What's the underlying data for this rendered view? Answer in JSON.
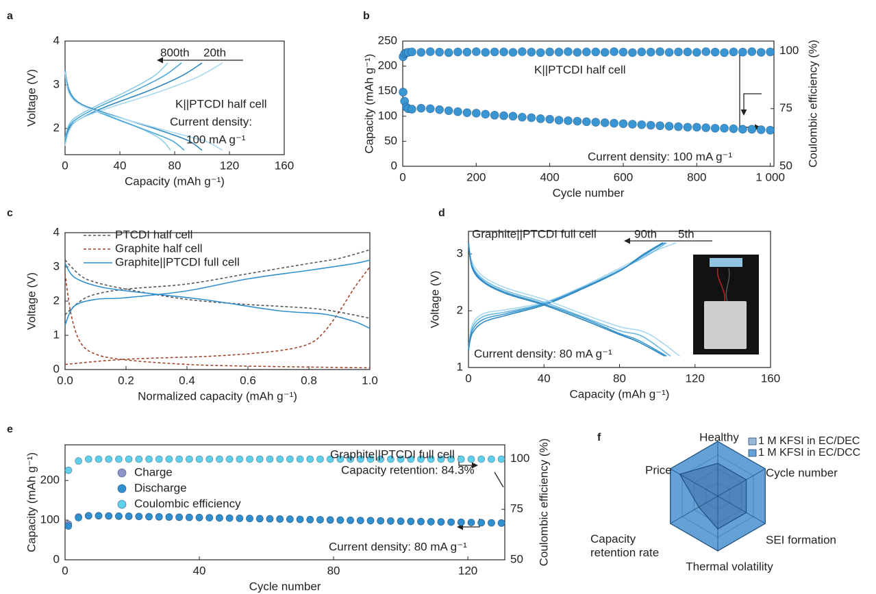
{
  "chart_data": [
    {
      "type": "line",
      "panel": "a",
      "xlabel": "Capacity (mAh g⁻¹)",
      "ylabel": "Voltage (V)",
      "xlim": [
        0,
        160
      ],
      "xticks": [
        0,
        40,
        80,
        120,
        160
      ],
      "ylim": [
        1.4,
        4
      ],
      "yticks": [
        2,
        3,
        4
      ],
      "annotations": [
        "800th",
        "20th",
        "K||PTCDI half cell",
        "Current density:",
        "100 mA g⁻¹"
      ],
      "series": [
        {
          "color": "#8ccbe9",
          "x": [
            0,
            3,
            10,
            25,
            45,
            65,
            75
          ],
          "values": [
            1.75,
            2.1,
            2.3,
            2.55,
            2.85,
            3.2,
            3.5
          ]
        },
        {
          "color": "#4aa6d8",
          "x": [
            0,
            3,
            10,
            25,
            50,
            72,
            85
          ],
          "values": [
            1.7,
            2.05,
            2.25,
            2.5,
            2.85,
            3.2,
            3.5
          ]
        },
        {
          "color": "#2b86c0",
          "x": [
            0,
            3,
            10,
            30,
            60,
            85,
            100
          ],
          "values": [
            1.65,
            2.0,
            2.2,
            2.5,
            2.85,
            3.2,
            3.5
          ]
        },
        {
          "color": "#a7d8ef",
          "x": [
            0,
            3,
            10,
            30,
            65,
            95,
            115
          ],
          "values": [
            1.6,
            1.95,
            2.2,
            2.45,
            2.8,
            3.15,
            3.5
          ]
        },
        {
          "color": "#8ccbe9",
          "x": [
            0,
            3,
            10,
            30,
            55,
            70,
            77
          ],
          "values": [
            3.3,
            2.9,
            2.6,
            2.3,
            2.0,
            1.75,
            1.5
          ]
        },
        {
          "color": "#4aa6d8",
          "x": [
            0,
            3,
            12,
            35,
            60,
            78,
            87
          ],
          "values": [
            3.3,
            2.85,
            2.55,
            2.25,
            1.95,
            1.72,
            1.5
          ]
        },
        {
          "color": "#2b86c0",
          "x": [
            0,
            3,
            12,
            40,
            70,
            90,
            100
          ],
          "values": [
            3.35,
            2.85,
            2.55,
            2.25,
            1.95,
            1.72,
            1.5
          ]
        },
        {
          "color": "#a7d8ef",
          "x": [
            0,
            3,
            14,
            45,
            80,
            103,
            115
          ],
          "values": [
            3.3,
            2.8,
            2.5,
            2.2,
            1.9,
            1.7,
            1.5
          ]
        }
      ]
    },
    {
      "type": "scatter",
      "panel": "b",
      "xlabel": "Cycle number",
      "ylabel": "Capacity (mAh g⁻¹)",
      "y2label": "Coulombic efficiency (%)",
      "xlim": [
        0,
        1010
      ],
      "xticks": [
        0,
        200,
        400,
        600,
        800,
        {
          "value": 1000,
          "label": "1 000"
        }
      ],
      "ylim": [
        0,
        250
      ],
      "yticks": [
        0,
        50,
        100,
        150,
        200,
        250
      ],
      "y2lim": [
        50,
        104.3
      ],
      "y2ticks": [
        50,
        75,
        100
      ],
      "annotations": [
        "K||PTCDI half cell",
        "Current density: 100 mA g⁻¹"
      ],
      "x": [
        1,
        5,
        10,
        15,
        25,
        50,
        75,
        100,
        125,
        150,
        175,
        200,
        225,
        250,
        275,
        300,
        325,
        350,
        375,
        400,
        425,
        450,
        475,
        500,
        525,
        550,
        575,
        600,
        625,
        650,
        675,
        700,
        725,
        750,
        775,
        800,
        825,
        850,
        875,
        900,
        925,
        950,
        975,
        1000
      ],
      "series": [
        {
          "color": "#3a96d2",
          "values": [
            148,
            130,
            118,
            115,
            114,
            116,
            115,
            113,
            111,
            109,
            107,
            106,
            104,
            102,
            101,
            100,
            98,
            97,
            95,
            94,
            92,
            91,
            90,
            89,
            88,
            87,
            86,
            85,
            84,
            83,
            82,
            81,
            80,
            79,
            78,
            78,
            77,
            76,
            76,
            75,
            74,
            74,
            73,
            72
          ]
        },
        {
          "color": "#3a96d2",
          "axis": "y2",
          "values": [
            97.5,
            98.8,
            99.2,
            99.4,
            99.6,
            99.4,
            99.7,
            99.5,
            99.3,
            99.6,
            99.5,
            99.7,
            99.4,
            99.6,
            99.6,
            99.4,
            99.7,
            99.5,
            99.3,
            99.6,
            99.5,
            99.7,
            99.4,
            99.6,
            99.6,
            99.4,
            99.7,
            99.5,
            99.3,
            99.6,
            99.5,
            99.7,
            99.4,
            99.6,
            99.6,
            99.4,
            99.7,
            99.5,
            99.3,
            99.6,
            99.5,
            99.7,
            99.4,
            99.6
          ]
        }
      ]
    },
    {
      "type": "line",
      "panel": "c",
      "xlabel": "Normalized capacity (mAh g⁻¹)",
      "ylabel": "Voltage (V)",
      "xlim": [
        0,
        1
      ],
      "xticks": [
        {
          "value": 0,
          "label": "0.0"
        },
        0.2,
        0.4,
        0.6,
        0.8,
        {
          "value": 1,
          "label": "1.0"
        }
      ],
      "ylim": [
        0,
        4
      ],
      "yticks": [
        0,
        1,
        2,
        3,
        4
      ],
      "legend": "upper left",
      "series": [
        {
          "name": "PTCDI half cell",
          "color": "#555555",
          "linestyle": "dashed",
          "x": [
            0,
            0.05,
            0.1,
            0.2,
            0.4,
            0.6,
            0.8,
            0.9,
            1.0,
            null,
            0,
            0.05,
            0.1,
            0.2,
            0.4,
            0.6,
            0.7,
            0.85,
            1.0
          ],
          "values": [
            1.6,
            2.0,
            2.2,
            2.35,
            2.5,
            2.8,
            3.1,
            3.25,
            3.5,
            null,
            3.2,
            2.75,
            2.55,
            2.35,
            2.05,
            1.9,
            1.85,
            1.75,
            1.5
          ]
        },
        {
          "name": "Graphite half cell",
          "color": "#a0452a",
          "linestyle": "dashed",
          "x": [
            0,
            0.02,
            0.05,
            0.1,
            0.2,
            0.4,
            0.6,
            1.0,
            null,
            0,
            0.2,
            0.5,
            0.7,
            0.8,
            0.85,
            0.9,
            0.95,
            1.0
          ],
          "values": [
            2.8,
            1.6,
            0.8,
            0.45,
            0.28,
            0.15,
            0.1,
            0.05,
            null,
            0.15,
            0.3,
            0.4,
            0.55,
            0.75,
            1.1,
            1.7,
            2.4,
            3.0
          ]
        },
        {
          "name": "Graphite||PTCDI full cell",
          "color": "#2f8fcf",
          "linestyle": "solid",
          "x": [
            0,
            0.03,
            0.1,
            0.2,
            0.4,
            0.6,
            0.8,
            0.95,
            1.0,
            null,
            0,
            0.03,
            0.1,
            0.2,
            0.45,
            0.7,
            0.85,
            0.95,
            1.0
          ],
          "values": [
            1.3,
            1.85,
            2.05,
            2.1,
            2.3,
            2.65,
            2.9,
            3.1,
            3.2,
            null,
            3.1,
            2.7,
            2.45,
            2.3,
            2.05,
            1.72,
            1.62,
            1.4,
            1.2
          ]
        }
      ]
    },
    {
      "type": "line",
      "panel": "d",
      "xlabel": "Capacity (mAh g⁻¹)",
      "ylabel": "Voltage (V)",
      "xlim": [
        0,
        160
      ],
      "xticks": [
        0,
        40,
        80,
        120,
        160
      ],
      "ylim": [
        1,
        3.4
      ],
      "yticks": [
        1,
        2,
        3
      ],
      "annotations": [
        "Graphite||PTCDI full cell",
        "90th",
        "5th",
        "Current density: 80 mA g⁻¹"
      ],
      "series": [
        {
          "color": "#a7d8ef",
          "x": [
            0,
            2,
            8,
            20,
            40,
            60,
            80,
            95,
            110
          ],
          "values": [
            1.3,
            1.75,
            1.95,
            2.02,
            2.15,
            2.42,
            2.75,
            3.0,
            3.2
          ]
        },
        {
          "color": "#6bb8e2",
          "x": [
            0,
            2,
            8,
            20,
            40,
            60,
            80,
            95,
            105
          ],
          "values": [
            1.3,
            1.7,
            1.9,
            1.98,
            2.13,
            2.4,
            2.72,
            2.98,
            3.2
          ]
        },
        {
          "color": "#3d98cf",
          "x": [
            0,
            2,
            8,
            20,
            40,
            60,
            80,
            93,
            104
          ],
          "values": [
            1.3,
            1.65,
            1.85,
            1.95,
            2.12,
            2.4,
            2.7,
            2.98,
            3.2
          ]
        },
        {
          "color": "#2b86c0",
          "x": [
            0,
            2,
            8,
            20,
            40,
            60,
            80,
            92,
            103
          ],
          "values": [
            1.3,
            1.6,
            1.8,
            1.92,
            2.1,
            2.38,
            2.7,
            2.98,
            3.2
          ]
        },
        {
          "color": "#a7d8ef",
          "x": [
            0,
            2,
            8,
            20,
            40,
            60,
            80,
            95,
            112
          ],
          "values": [
            3.2,
            2.85,
            2.6,
            2.4,
            2.2,
            1.95,
            1.72,
            1.6,
            1.2
          ]
        },
        {
          "color": "#6bb8e2",
          "x": [
            0,
            2,
            8,
            20,
            40,
            60,
            80,
            92,
            107
          ],
          "values": [
            3.2,
            2.8,
            2.55,
            2.35,
            2.15,
            1.9,
            1.65,
            1.55,
            1.2
          ]
        },
        {
          "color": "#3d98cf",
          "x": [
            0,
            2,
            8,
            20,
            40,
            60,
            80,
            90,
            105
          ],
          "values": [
            3.2,
            2.78,
            2.52,
            2.32,
            2.12,
            1.88,
            1.6,
            1.48,
            1.2
          ]
        },
        {
          "color": "#2b86c0",
          "x": [
            0,
            2,
            8,
            20,
            40,
            60,
            80,
            90,
            104
          ],
          "values": [
            3.2,
            2.75,
            2.5,
            2.3,
            2.1,
            1.85,
            1.58,
            1.45,
            1.2
          ]
        }
      ]
    },
    {
      "type": "scatter",
      "panel": "e",
      "xlabel": "Cycle number",
      "ylabel": "Capacity (mAh g⁻¹)",
      "y2label": "Coulombic efficiency (%)",
      "xlim": [
        0,
        131
      ],
      "xticks": [
        0,
        40,
        80,
        120
      ],
      "ylim": [
        0,
        290
      ],
      "yticks": [
        0,
        100,
        200
      ],
      "y2lim": [
        50,
        106.9
      ],
      "y2ticks": [
        50,
        75,
        100
      ],
      "legend": "upper left",
      "annotations": [
        "Graphite||PTCDI full cell",
        "Capacity retention: 84.3%",
        "Current density: 80 mA g⁻¹"
      ],
      "x": [
        1,
        4,
        7,
        10,
        13,
        16,
        19,
        22,
        25,
        28,
        31,
        34,
        37,
        40,
        43,
        46,
        49,
        52,
        55,
        58,
        61,
        64,
        67,
        70,
        73,
        76,
        79,
        82,
        85,
        88,
        91,
        94,
        97,
        100,
        103,
        106,
        109,
        112,
        115,
        118,
        121,
        124,
        127,
        130
      ],
      "series": [
        {
          "name": "Charge",
          "color": "#8f93c7",
          "values": [
            90,
            108,
            111,
            111,
            110.5,
            110,
            109.7,
            109.2,
            108.7,
            108.3,
            107.8,
            107.4,
            106.9,
            106.5,
            106,
            105.6,
            105.1,
            104.6,
            104.2,
            103.7,
            103.3,
            102.8,
            102.4,
            101.9,
            101.4,
            101,
            100.5,
            100.1,
            99.6,
            99.1,
            98.7,
            98.2,
            97.8,
            97.3,
            96.8,
            96.4,
            95.9,
            95.5,
            95,
            94.6,
            94.1,
            93.6,
            93.2,
            92.7
          ]
        },
        {
          "name": "Discharge",
          "color": "#2f8fcf",
          "values": [
            85,
            106,
            111,
            111,
            110.5,
            110,
            109.7,
            109.2,
            108.7,
            108.3,
            107.8,
            107.4,
            106.9,
            106.5,
            106,
            105.6,
            105.1,
            104.6,
            104.2,
            103.7,
            103.3,
            102.8,
            102.4,
            101.9,
            101.4,
            101,
            100.5,
            100.1,
            99.6,
            99.1,
            98.7,
            98.2,
            97.8,
            97.3,
            96.8,
            96.4,
            95.9,
            95.5,
            95,
            94.6,
            94.1,
            93.6,
            93.2,
            92.7
          ]
        },
        {
          "name": "Coulombic efficiency",
          "color": "#5fd0ea",
          "axis": "y2",
          "values": [
            94.3,
            98.9,
            99.8,
            99.8,
            99.8,
            99.8,
            99.8,
            99.8,
            99.8,
            99.8,
            99.8,
            99.8,
            99.8,
            99.8,
            99.8,
            99.8,
            99.8,
            99.8,
            99.8,
            99.8,
            99.8,
            99.8,
            99.8,
            99.8,
            99.8,
            99.8,
            99.8,
            99.8,
            99.8,
            99.8,
            99.8,
            99.8,
            99.8,
            99.8,
            99.8,
            99.8,
            99.8,
            99.8,
            99.8,
            99.8,
            99.8,
            99.8,
            99.8,
            99.8
          ]
        }
      ]
    },
    {
      "type": "radar",
      "panel": "f",
      "rlim": [
        0,
        5
      ],
      "legend": "upper right",
      "categories": [
        "Healthy",
        "Cycle number",
        "SEI formation",
        "Thermal volatility",
        "Capacity retention rate",
        "Price"
      ],
      "series": [
        {
          "name": "1 M KFSI in EC/DCC",
          "color": "#4a90cf",
          "values": [
            5,
            5,
            5,
            5,
            5,
            5
          ]
        },
        {
          "name": "1 M KFSI in EC/DEC",
          "color": "#3a6fa8",
          "values": [
            3,
            3,
            3,
            3,
            2,
            4
          ]
        }
      ]
    }
  ]
}
